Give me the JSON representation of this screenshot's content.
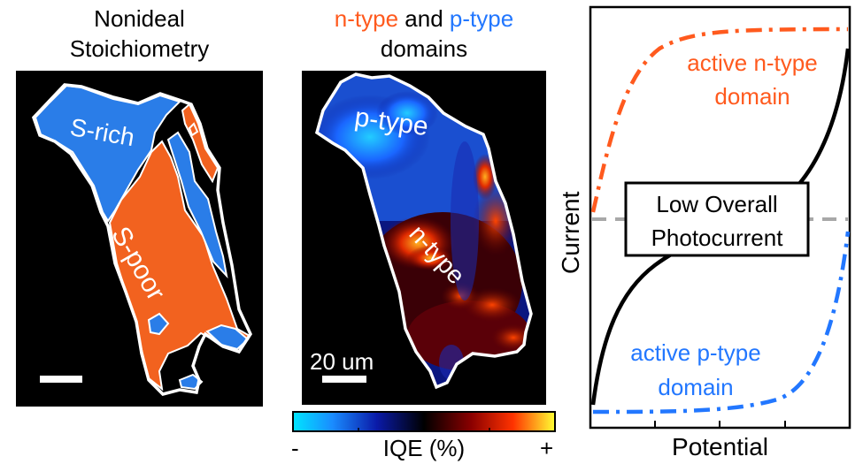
{
  "colors": {
    "n_type": "#ff5a1e",
    "p_type": "#2277ff",
    "overall": "#000000",
    "dashed": "#a8a8a8"
  },
  "panel_left": {
    "title_line1": "Nonideal",
    "title_line2": "Stoichiometry",
    "label_rich": "S-rich",
    "label_poor": "S-poor"
  },
  "panel_middle": {
    "title_n": "n-type",
    "title_and": "and",
    "title_p": "p-type",
    "title_line2": "domains",
    "label_p": "p-type",
    "label_n": "n-type",
    "scale_label": "20 um",
    "colorbar_label": "IQE (%)",
    "colorbar_min": "-",
    "colorbar_max": "+"
  },
  "panel_right": {
    "ylabel": "Current",
    "xlabel": "Potential",
    "label_n_line1": "active n-type",
    "label_n_line2": "domain",
    "label_p_line1": "active p-type",
    "label_p_line2": "domain",
    "box_line1": "Low Overall",
    "box_line2": "Photocurrent"
  }
}
